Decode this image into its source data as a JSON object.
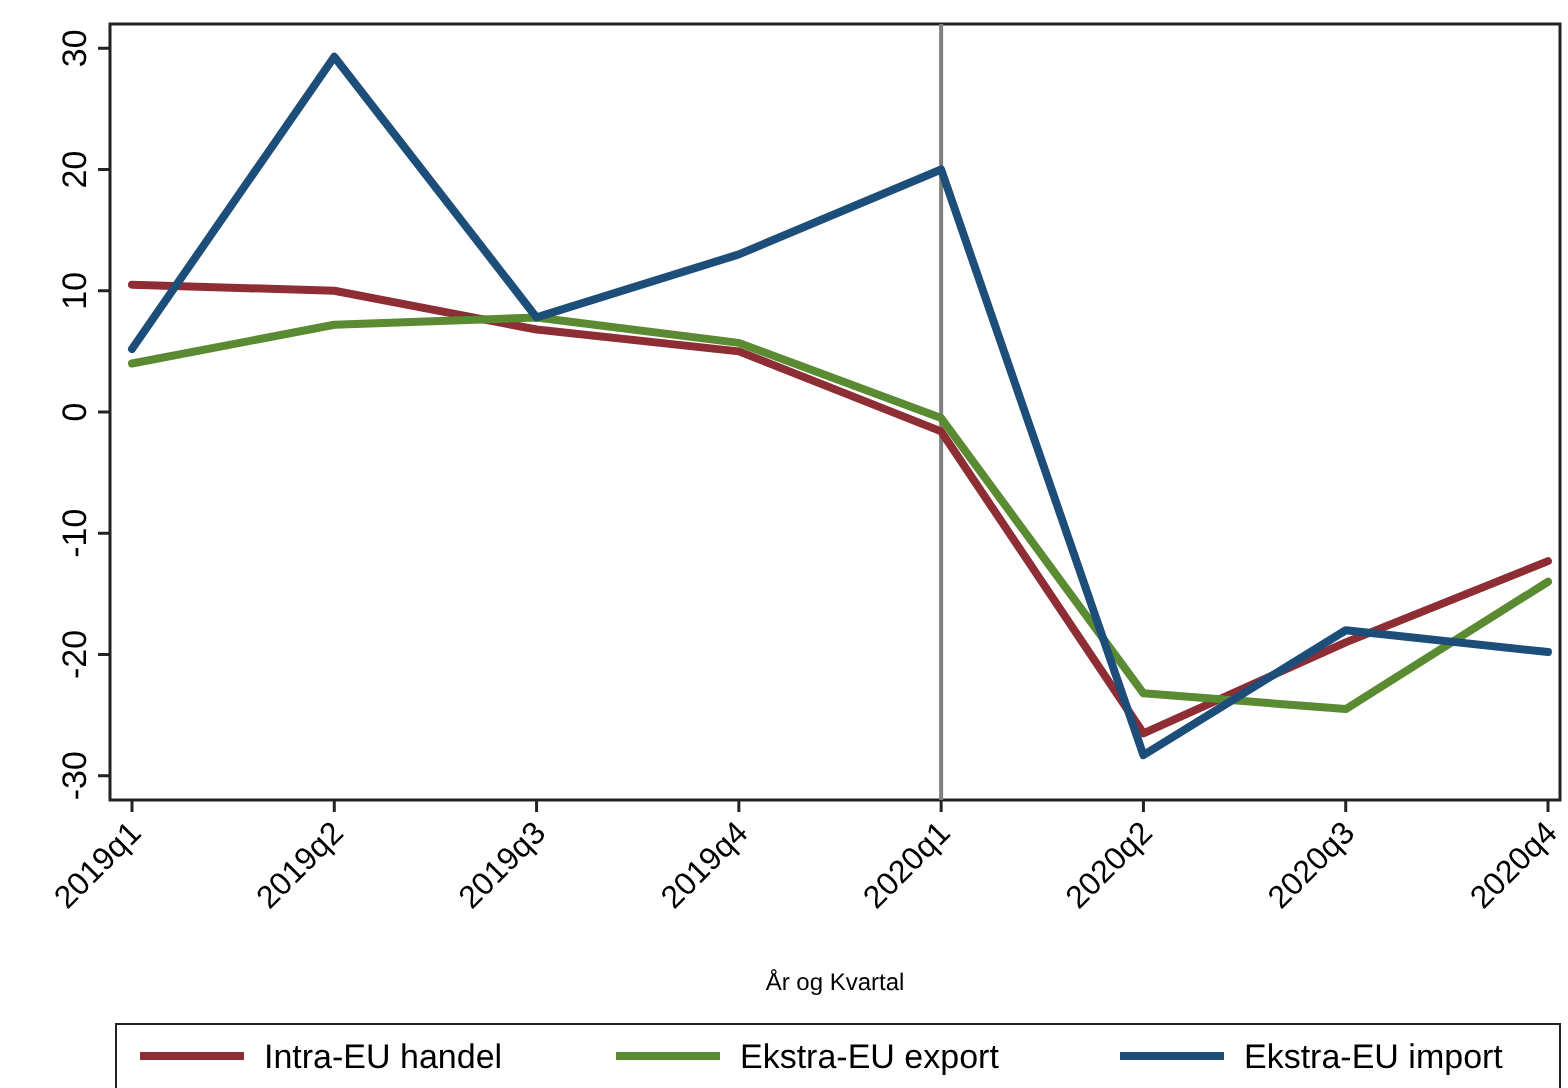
{
  "chart_data": {
    "type": "line",
    "xlabel": "År og Kvartal",
    "categories": [
      "2019q1",
      "2019q2",
      "2019q3",
      "2019q4",
      "2020q1",
      "2020q2",
      "2020q3",
      "2020q4"
    ],
    "series": [
      {
        "name": "Intra-EU handel",
        "color": "#8f2d35",
        "values": [
          10.5,
          10,
          6.8,
          5,
          -1.6,
          -26.5,
          -19,
          -12.3
        ]
      },
      {
        "name": "Ekstra-EU export",
        "color": "#5a8a32",
        "values": [
          4,
          7.2,
          7.8,
          5.7,
          -0.5,
          -23.2,
          -24.5,
          -14
        ]
      },
      {
        "name": "Ekstra-EU import",
        "color": "#1d4e79",
        "values": [
          5.2,
          29.3,
          7.8,
          13,
          20,
          -28.3,
          -18,
          -19.8
        ]
      }
    ],
    "ylim": [
      -32,
      32
    ],
    "yticks": [
      -30,
      -20,
      -10,
      0,
      10,
      20,
      30
    ],
    "grid": false,
    "legend": "bottom",
    "marker": "none",
    "line_style": "solid",
    "ref_lines": [
      {
        "axis": "x",
        "value": "2020q1",
        "color": "#7f7f7f"
      }
    ]
  }
}
